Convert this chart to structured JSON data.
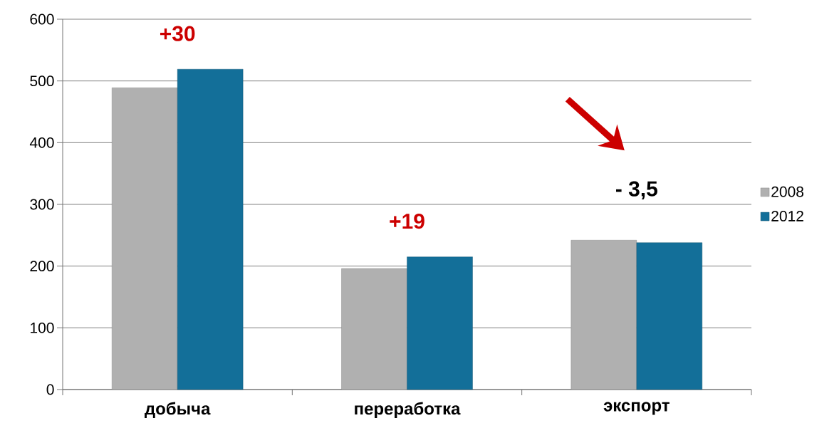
{
  "chart_data": {
    "type": "bar",
    "categories": [
      "добыча",
      "переработка",
      "экспорт"
    ],
    "series": [
      {
        "name": "2008",
        "color": "#b0b0b0",
        "values": [
          489,
          196,
          242
        ]
      },
      {
        "name": "2012",
        "color": "#136f99",
        "values": [
          519,
          215,
          238
        ]
      }
    ],
    "ylim": [
      0,
      600
    ],
    "yticks": [
      0,
      100,
      200,
      300,
      400,
      500,
      600
    ],
    "grid": "y",
    "legend": "right",
    "annotations": [
      "+30",
      "+19",
      "- 3,5"
    ]
  }
}
